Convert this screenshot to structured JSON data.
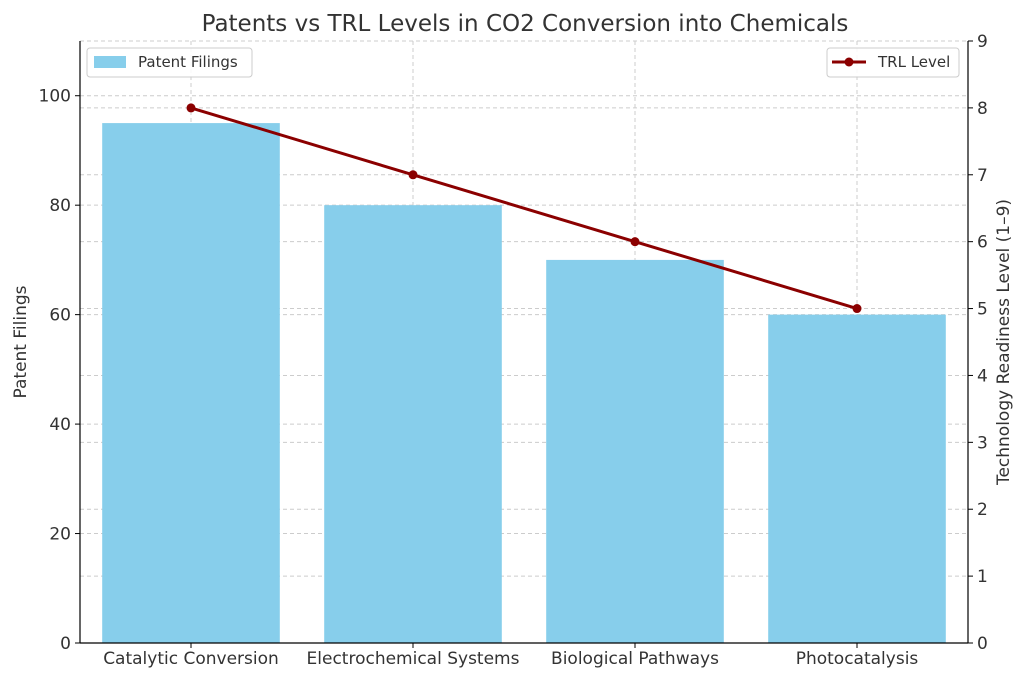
{
  "chart_data": {
    "type": "bar",
    "title": "Patents vs TRL Levels in CO2 Conversion into Chemicals",
    "categories": [
      "Catalytic Conversion",
      "Electrochemical Systems",
      "Biological Pathways",
      "Photocatalysis"
    ],
    "series": [
      {
        "name": "Patent Filings",
        "type": "bar",
        "axis": "left",
        "values": [
          95,
          80,
          70,
          60
        ],
        "color": "#87CEEB"
      },
      {
        "name": "TRL Level",
        "type": "line",
        "axis": "right",
        "values": [
          8,
          7,
          6,
          5
        ],
        "color": "#8B0000"
      }
    ],
    "ylabel": "Patent Filings",
    "ylabel_right": "Technology Readiness Level (1–9)",
    "ylim": [
      0,
      110
    ],
    "ylim_right": [
      0,
      9
    ],
    "yticks": [
      0,
      20,
      40,
      60,
      80,
      100
    ],
    "yticks_right": [
      0,
      1,
      2,
      3,
      4,
      5,
      6,
      7,
      8,
      9
    ],
    "grid": true,
    "legend_bar_position": "top-left",
    "legend_line_position": "top-right"
  }
}
